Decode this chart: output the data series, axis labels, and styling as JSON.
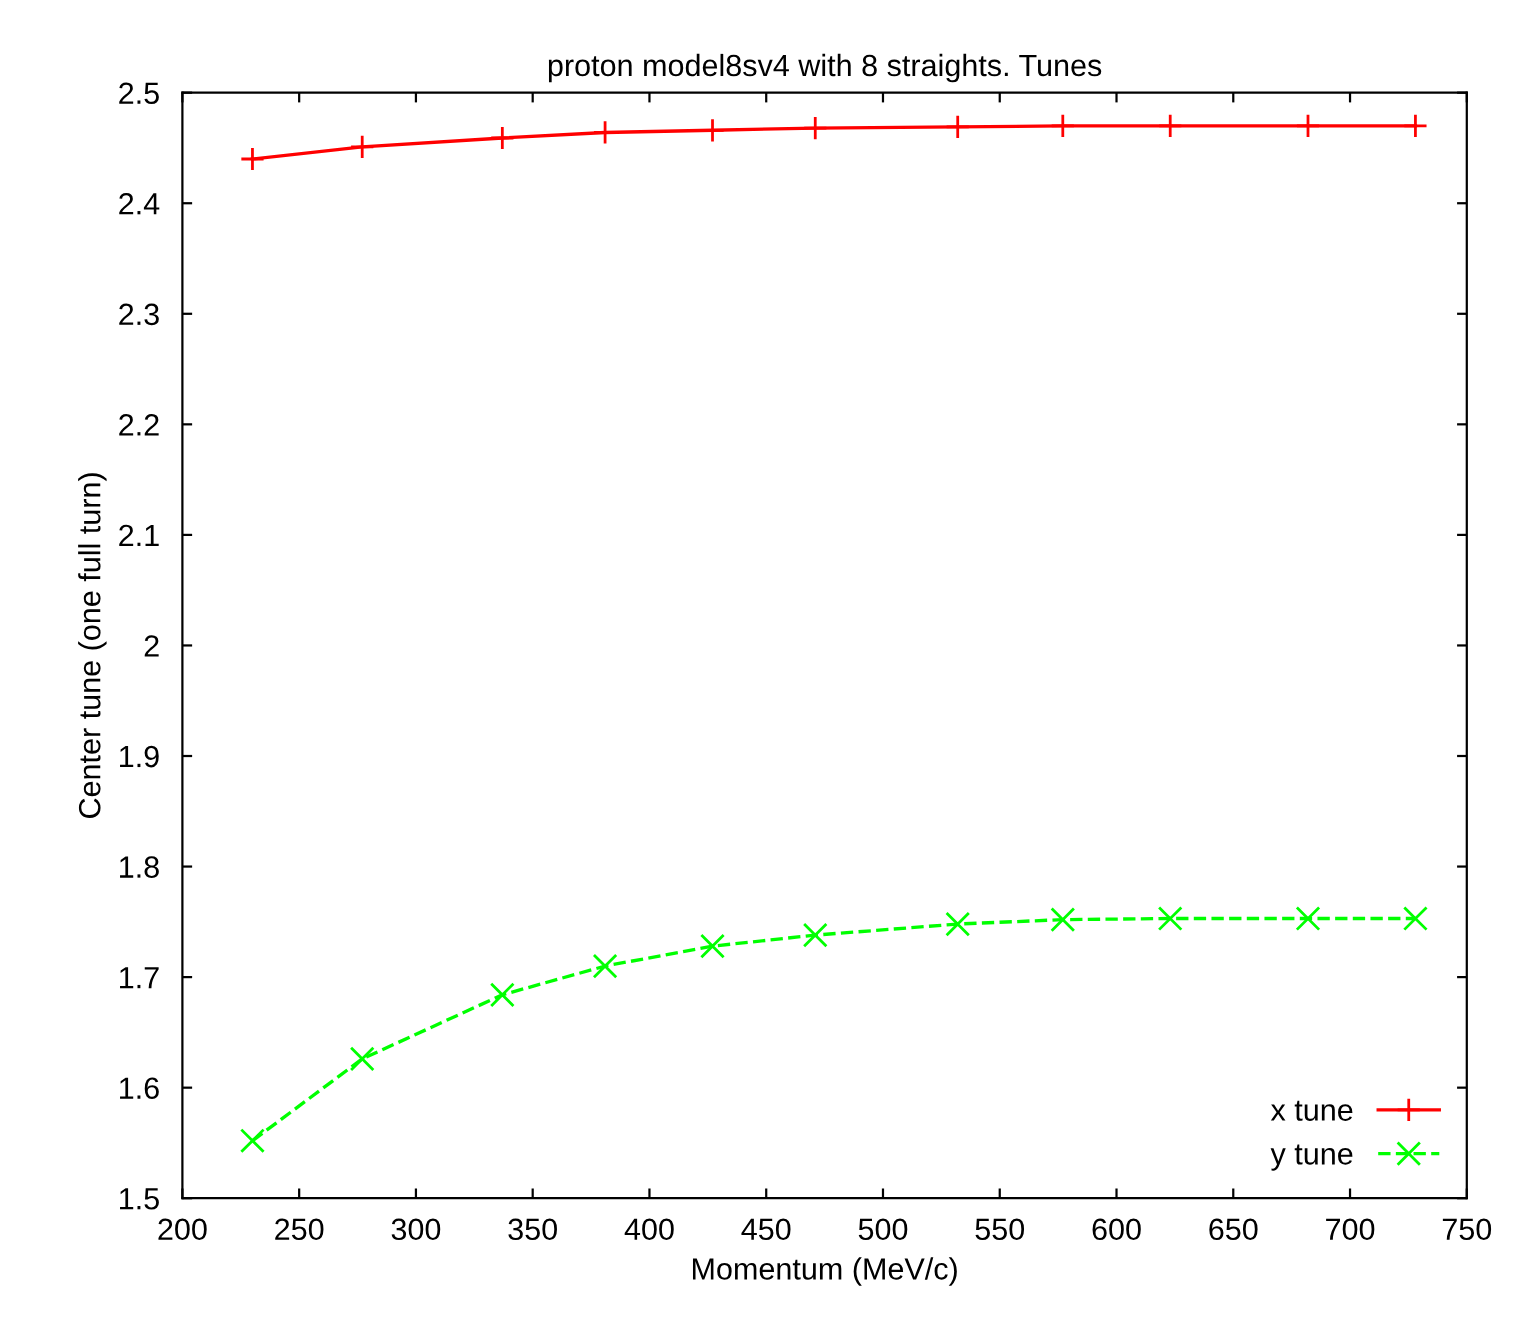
{
  "chart_data": {
    "type": "line",
    "title": "proton model8sv4 with 8 straights. Tunes",
    "xlabel": "Momentum (MeV/c)",
    "ylabel": "Center tune (one full turn)",
    "x": [
      230,
      277,
      337,
      381,
      427,
      471,
      532,
      577,
      623,
      682,
      728
    ],
    "series": [
      {
        "name": "x tune",
        "color": "#ff0000",
        "marker": "plus",
        "line_style": "solid",
        "values": [
          2.44,
          2.451,
          2.459,
          2.464,
          2.466,
          2.468,
          2.469,
          2.47,
          2.47,
          2.47,
          2.47
        ]
      },
      {
        "name": "y tune",
        "color": "#00ff00",
        "marker": "cross",
        "line_style": "dashed",
        "values": [
          1.552,
          1.626,
          1.684,
          1.71,
          1.728,
          1.738,
          1.748,
          1.752,
          1.753,
          1.753,
          1.753
        ]
      }
    ],
    "xlim": [
      200,
      750
    ],
    "xticks": [
      200,
      250,
      300,
      350,
      400,
      450,
      500,
      550,
      600,
      650,
      700,
      750
    ],
    "ylim": [
      1.5,
      2.5
    ],
    "yticks": [
      1.5,
      1.6,
      1.7,
      1.8,
      1.9,
      2,
      2.1,
      2.2,
      2.3,
      2.4,
      2.5
    ],
    "grid": false,
    "legend": "bottom right"
  }
}
